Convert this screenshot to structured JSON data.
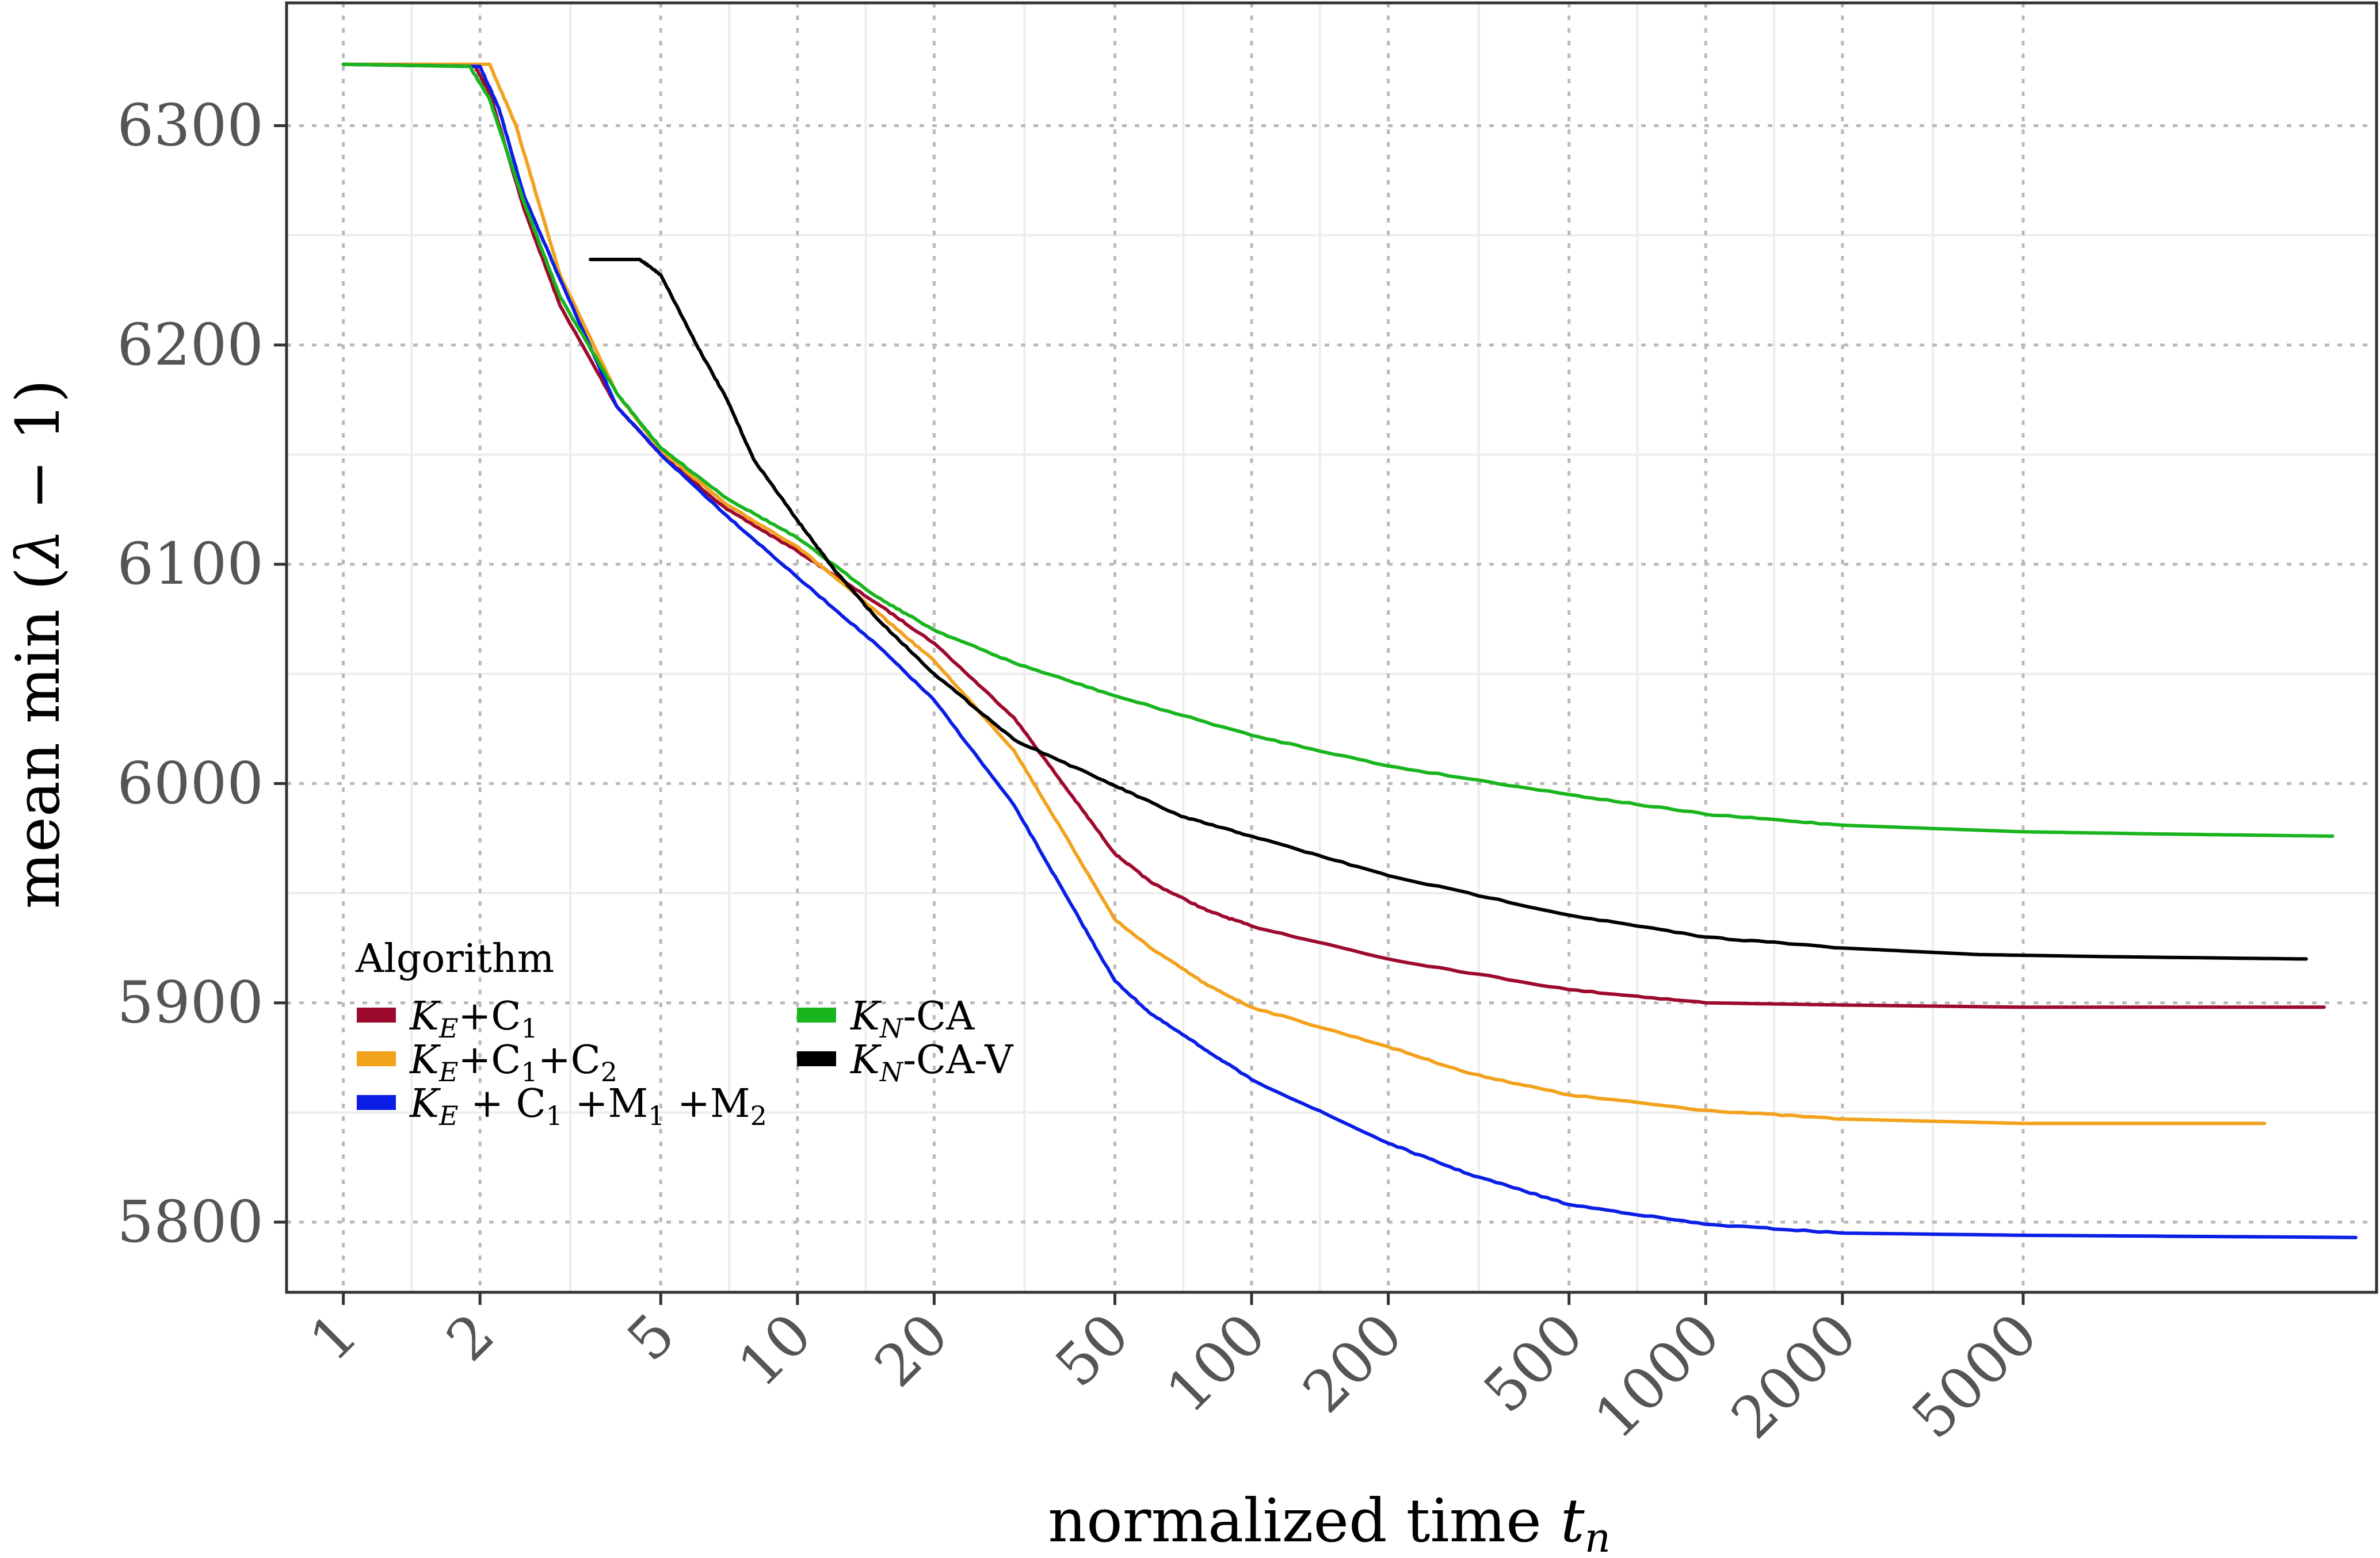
{
  "chart_data": {
    "type": "line",
    "xlabel": "normalized time t_n",
    "ylabel": "mean min (λ − 1)",
    "xscale": "log",
    "xlim": [
      0.75,
      30000
    ],
    "ylim": [
      5768,
      6356
    ],
    "x_ticks": [
      1,
      2,
      5,
      10,
      20,
      50,
      100,
      200,
      500,
      1000,
      2000,
      5000
    ],
    "x_tick_labels": [
      "1",
      "2",
      "5",
      "10",
      "20",
      "50",
      "100",
      "200",
      "500",
      "1000",
      "2000",
      "5000"
    ],
    "y_ticks": [
      5800,
      5900,
      6000,
      6100,
      6200,
      6300
    ],
    "y_tick_labels": [
      "5800",
      "5900",
      "6000",
      "6100",
      "6200",
      "6300"
    ],
    "grid": true,
    "legend": {
      "title": "Algorithm",
      "placement": "bottom-left (inside plot)",
      "entries": [
        "K_E+C_1",
        "K_E+C_1+C_2",
        "K_E + C_1 +M_1 +M_2",
        "K_N-CA",
        "K_N-CA-V"
      ]
    },
    "series": [
      {
        "name": "K_E+C_1",
        "color": "#9e0a2e",
        "points": [
          [
            1,
            6328
          ],
          [
            1.95,
            6327
          ],
          [
            2.1,
            6315
          ],
          [
            2.5,
            6262
          ],
          [
            3,
            6218
          ],
          [
            4,
            6172
          ],
          [
            5,
            6150
          ],
          [
            7,
            6125
          ],
          [
            10,
            6106
          ],
          [
            15,
            6082
          ],
          [
            20,
            6064
          ],
          [
            30,
            6030
          ],
          [
            40,
            5995
          ],
          [
            50,
            5968
          ],
          [
            60,
            5955
          ],
          [
            80,
            5942
          ],
          [
            100,
            5935
          ],
          [
            200,
            5920
          ],
          [
            500,
            5906
          ],
          [
            1000,
            5900
          ],
          [
            2000,
            5899
          ],
          [
            5000,
            5898
          ],
          [
            23000,
            5898
          ]
        ]
      },
      {
        "name": "K_E+C_1+C_2",
        "color": "#f2a21d",
        "points": [
          [
            1,
            6328
          ],
          [
            2.1,
            6328
          ],
          [
            2.4,
            6300
          ],
          [
            3,
            6232
          ],
          [
            4,
            6178
          ],
          [
            5,
            6152
          ],
          [
            7,
            6127
          ],
          [
            10,
            6108
          ],
          [
            15,
            6078
          ],
          [
            20,
            6056
          ],
          [
            30,
            6015
          ],
          [
            40,
            5972
          ],
          [
            50,
            5938
          ],
          [
            60,
            5925
          ],
          [
            80,
            5908
          ],
          [
            100,
            5898
          ],
          [
            200,
            5880
          ],
          [
            300,
            5868
          ],
          [
            500,
            5858
          ],
          [
            1000,
            5851
          ],
          [
            2000,
            5847
          ],
          [
            5000,
            5845
          ],
          [
            17000,
            5845
          ]
        ]
      },
      {
        "name": "K_E + C_1 +M_1 +M_2",
        "color": "#0a1ee6",
        "points": [
          [
            1,
            6328
          ],
          [
            2,
            6327
          ],
          [
            2.2,
            6308
          ],
          [
            2.5,
            6268
          ],
          [
            3,
            6230
          ],
          [
            4,
            6172
          ],
          [
            5,
            6150
          ],
          [
            7,
            6122
          ],
          [
            10,
            6094
          ],
          [
            15,
            6063
          ],
          [
            20,
            6038
          ],
          [
            30,
            5990
          ],
          [
            40,
            5945
          ],
          [
            50,
            5910
          ],
          [
            60,
            5895
          ],
          [
            80,
            5878
          ],
          [
            100,
            5865
          ],
          [
            200,
            5836
          ],
          [
            300,
            5822
          ],
          [
            500,
            5808
          ],
          [
            1000,
            5799
          ],
          [
            2000,
            5795
          ],
          [
            5000,
            5794
          ],
          [
            27000,
            5793
          ]
        ]
      },
      {
        "name": "K_N-CA",
        "color": "#19b51e",
        "points": [
          [
            1,
            6328
          ],
          [
            1.9,
            6327
          ],
          [
            2.1,
            6312
          ],
          [
            2.5,
            6265
          ],
          [
            3,
            6222
          ],
          [
            4,
            6178
          ],
          [
            5,
            6153
          ],
          [
            7,
            6130
          ],
          [
            10,
            6112
          ],
          [
            15,
            6085
          ],
          [
            20,
            6070
          ],
          [
            30,
            6055
          ],
          [
            50,
            6040
          ],
          [
            100,
            6022
          ],
          [
            200,
            6008
          ],
          [
            500,
            5995
          ],
          [
            1000,
            5986
          ],
          [
            2000,
            5981
          ],
          [
            5000,
            5978
          ],
          [
            10000,
            5977
          ],
          [
            24000,
            5976
          ]
        ]
      },
      {
        "name": "K_N-CA-V",
        "color": "#000000",
        "points": [
          [
            3.5,
            6239
          ],
          [
            4.5,
            6239
          ],
          [
            5,
            6232
          ],
          [
            6,
            6200
          ],
          [
            7,
            6175
          ],
          [
            8,
            6148
          ],
          [
            10,
            6120
          ],
          [
            12,
            6098
          ],
          [
            15,
            6075
          ],
          [
            20,
            6050
          ],
          [
            30,
            6020
          ],
          [
            50,
            5999
          ],
          [
            70,
            5985
          ],
          [
            100,
            5976
          ],
          [
            200,
            5958
          ],
          [
            500,
            5940
          ],
          [
            1000,
            5930
          ],
          [
            2000,
            5925
          ],
          [
            4000,
            5922
          ],
          [
            8000,
            5921
          ],
          [
            21000,
            5920
          ]
        ]
      }
    ]
  }
}
